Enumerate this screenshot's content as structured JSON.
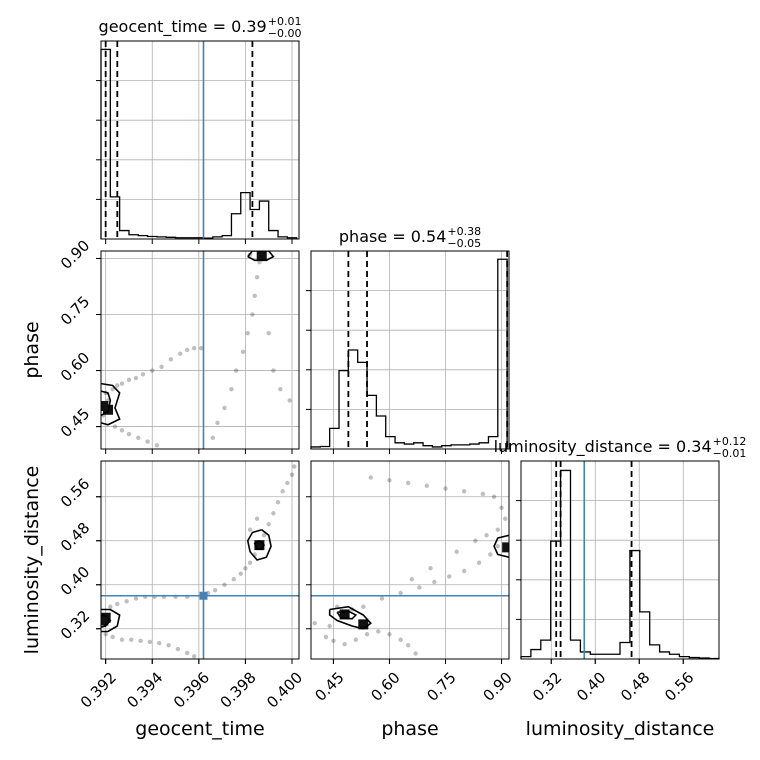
{
  "chart_data": {
    "type": "corner",
    "truth_color": "#4682b4",
    "hist_color": "#000000",
    "parameters": [
      {
        "name": "geocent_time",
        "axis_label": "geocent_time",
        "range": [
          0.3918,
          0.4003
        ],
        "ticks": [
          0.392,
          0.394,
          0.396,
          0.398,
          0.4
        ],
        "tick_labels": [
          "0.392",
          "0.394",
          "0.396",
          "0.398",
          "0.400"
        ],
        "truth": 0.3962,
        "title": {
          "text": "geocent_time = 0.39",
          "plus": "+0.01",
          "minus": "−0.00"
        },
        "quantiles": [
          0.392,
          0.3925,
          0.3983
        ],
        "hist": {
          "edges": [
            0.3918,
            0.3922,
            0.3926,
            0.393,
            0.3934,
            0.3938,
            0.3942,
            0.3946,
            0.395,
            0.3954,
            0.3958,
            0.3962,
            0.3966,
            0.397,
            0.3974,
            0.3978,
            0.3982,
            0.3986,
            0.399,
            0.3994,
            0.3998,
            0.4002
          ],
          "counts": [
            4.5,
            1.0,
            0.2,
            0.1,
            0.08,
            0.06,
            0.05,
            0.04,
            0.03,
            0.03,
            0.03,
            0.02,
            0.05,
            0.08,
            0.6,
            1.1,
            0.7,
            0.9,
            0.2,
            0.05,
            0.03
          ],
          "ymax": 4.7
        }
      },
      {
        "name": "phase",
        "axis_label": "phase",
        "range": [
          0.39,
          0.92
        ],
        "ticks": [
          0.45,
          0.6,
          0.75,
          0.9
        ],
        "tick_labels": [
          "0.45",
          "0.60",
          "0.75",
          "0.90"
        ],
        "truth": null,
        "title": {
          "text": "phase = 0.54",
          "plus": "+0.38",
          "minus": "−0.05"
        },
        "quantiles": [
          0.49,
          0.54,
          0.915
        ],
        "hist": {
          "edges": [
            0.39,
            0.415,
            0.44,
            0.465,
            0.49,
            0.515,
            0.54,
            0.565,
            0.59,
            0.615,
            0.64,
            0.665,
            0.69,
            0.715,
            0.74,
            0.765,
            0.79,
            0.815,
            0.84,
            0.865,
            0.89,
            0.915
          ],
          "counts": [
            0.05,
            0.06,
            0.5,
            1.9,
            2.4,
            2.1,
            1.3,
            0.8,
            0.3,
            0.15,
            0.12,
            0.15,
            0.08,
            0.05,
            0.08,
            0.1,
            0.1,
            0.12,
            0.15,
            0.3,
            4.6
          ],
          "ymax": 4.8
        }
      },
      {
        "name": "luminosity_distance",
        "axis_label": "luminosity_distance",
        "range": [
          0.265,
          0.625
        ],
        "ticks": [
          0.32,
          0.4,
          0.48,
          0.56
        ],
        "tick_labels": [
          "0.32",
          "0.40",
          "0.48",
          "0.56"
        ],
        "truth": 0.38,
        "title": {
          "text": "luminosity_distance = 0.34",
          "plus": "+0.12",
          "minus": "−0.01"
        },
        "quantiles": [
          0.329,
          0.337,
          0.466
        ],
        "hist": {
          "edges": [
            0.265,
            0.283,
            0.301,
            0.319,
            0.337,
            0.355,
            0.373,
            0.391,
            0.409,
            0.427,
            0.445,
            0.463,
            0.481,
            0.499,
            0.517,
            0.535,
            0.553,
            0.571,
            0.589,
            0.607,
            0.625
          ],
          "counts": [
            0.05,
            0.2,
            0.4,
            2.5,
            4.0,
            0.4,
            0.15,
            0.1,
            0.1,
            0.1,
            0.35,
            2.3,
            1.0,
            0.3,
            0.15,
            0.1,
            0.05,
            0.03,
            0.02,
            0.01
          ],
          "ymax": 4.2
        }
      }
    ],
    "panels_2d": [
      {
        "x_param": 0,
        "y_param": 1,
        "truth": [
          0.3962,
          null
        ],
        "samples": [
          [
            0.3919,
            0.51
          ],
          [
            0.3921,
            0.52
          ],
          [
            0.3923,
            0.55
          ],
          [
            0.3925,
            0.56
          ],
          [
            0.3927,
            0.565
          ],
          [
            0.393,
            0.575
          ],
          [
            0.3933,
            0.58
          ],
          [
            0.3936,
            0.59
          ],
          [
            0.394,
            0.6
          ],
          [
            0.3944,
            0.61
          ],
          [
            0.3948,
            0.63
          ],
          [
            0.3952,
            0.645
          ],
          [
            0.3955,
            0.655
          ],
          [
            0.3958,
            0.66
          ],
          [
            0.3961,
            0.66
          ],
          [
            0.3924,
            0.45
          ],
          [
            0.3927,
            0.44
          ],
          [
            0.393,
            0.43
          ],
          [
            0.3934,
            0.42
          ],
          [
            0.3938,
            0.41
          ],
          [
            0.3942,
            0.4
          ],
          [
            0.3966,
            0.42
          ],
          [
            0.3968,
            0.46
          ],
          [
            0.3971,
            0.5
          ],
          [
            0.3974,
            0.55
          ],
          [
            0.3976,
            0.6
          ],
          [
            0.3979,
            0.65
          ],
          [
            0.3981,
            0.7
          ],
          [
            0.3983,
            0.75
          ],
          [
            0.3984,
            0.8
          ],
          [
            0.3985,
            0.85
          ],
          [
            0.3986,
            0.89
          ],
          [
            0.3982,
            0.91
          ],
          [
            0.3988,
            0.9
          ],
          [
            0.399,
            0.7
          ],
          [
            0.3992,
            0.6
          ],
          [
            0.3995,
            0.55
          ],
          [
            0.3999,
            0.52
          ],
          [
            0.3919,
            0.48
          ],
          [
            0.392,
            0.54
          ]
        ],
        "contours": [
          [
            [
              0.3918,
              0.565
            ],
            [
              0.3923,
              0.56
            ],
            [
              0.3926,
              0.54
            ],
            [
              0.3924,
              0.5
            ],
            [
              0.3926,
              0.47
            ],
            [
              0.3921,
              0.455
            ],
            [
              0.3918,
              0.46
            ]
          ],
          [
            [
              0.3918,
              0.545
            ],
            [
              0.3921,
              0.54
            ],
            [
              0.3922,
              0.52
            ],
            [
              0.3921,
              0.49
            ],
            [
              0.3918,
              0.48
            ]
          ],
          [
            [
              0.3981,
              0.905
            ],
            [
              0.3983,
              0.92
            ],
            [
              0.399,
              0.92
            ],
            [
              0.3992,
              0.905
            ],
            [
              0.3989,
              0.895
            ],
            [
              0.3984,
              0.895
            ],
            [
              0.3981,
              0.905
            ]
          ]
        ],
        "dense": [
          [
            0.3919,
            0.505
          ],
          [
            0.3921,
            0.495
          ],
          [
            0.3987,
            0.91
          ]
        ]
      },
      {
        "x_param": 0,
        "y_param": 2,
        "truth": [
          0.3962,
          0.38
        ],
        "samples": [
          [
            0.392,
            0.31
          ],
          [
            0.3923,
            0.305
          ],
          [
            0.3927,
            0.3
          ],
          [
            0.3931,
            0.3
          ],
          [
            0.3935,
            0.298
          ],
          [
            0.3939,
            0.296
          ],
          [
            0.3943,
            0.294
          ],
          [
            0.3947,
            0.29
          ],
          [
            0.3951,
            0.283
          ],
          [
            0.3955,
            0.276
          ],
          [
            0.3958,
            0.27
          ],
          [
            0.3962,
            0.38
          ],
          [
            0.3964,
            0.385
          ],
          [
            0.3967,
            0.39
          ],
          [
            0.3971,
            0.4
          ],
          [
            0.3975,
            0.41
          ],
          [
            0.3978,
            0.42
          ],
          [
            0.398,
            0.43
          ],
          [
            0.3982,
            0.44
          ],
          [
            0.3984,
            0.455
          ],
          [
            0.3986,
            0.47
          ],
          [
            0.3988,
            0.49
          ],
          [
            0.399,
            0.51
          ],
          [
            0.3992,
            0.53
          ],
          [
            0.3994,
            0.55
          ],
          [
            0.3996,
            0.57
          ],
          [
            0.3998,
            0.585
          ],
          [
            0.4,
            0.6
          ],
          [
            0.4001,
            0.615
          ],
          [
            0.3922,
            0.36
          ],
          [
            0.3925,
            0.365
          ],
          [
            0.3929,
            0.37
          ],
          [
            0.3933,
            0.375
          ],
          [
            0.3937,
            0.378
          ],
          [
            0.3941,
            0.378
          ],
          [
            0.3945,
            0.378
          ],
          [
            0.395,
            0.378
          ],
          [
            0.3955,
            0.378
          ],
          [
            0.3982,
            0.5
          ],
          [
            0.3985,
            0.52
          ]
        ],
        "contours": [
          [
            [
              0.3918,
              0.355
            ],
            [
              0.3922,
              0.355
            ],
            [
              0.3926,
              0.345
            ],
            [
              0.3925,
              0.325
            ],
            [
              0.3921,
              0.315
            ],
            [
              0.3918,
              0.315
            ]
          ],
          [
            [
              0.3918,
              0.345
            ],
            [
              0.392,
              0.343
            ],
            [
              0.3922,
              0.335
            ],
            [
              0.392,
              0.325
            ],
            [
              0.3918,
              0.323
            ]
          ],
          [
            [
              0.3987,
              0.5
            ],
            [
              0.3983,
              0.495
            ],
            [
              0.3981,
              0.48
            ],
            [
              0.3982,
              0.46
            ],
            [
              0.3985,
              0.445
            ],
            [
              0.3989,
              0.45
            ],
            [
              0.3991,
              0.47
            ],
            [
              0.399,
              0.49
            ],
            [
              0.3987,
              0.5
            ]
          ],
          [
            [
              0.3986,
              0.48
            ],
            [
              0.3984,
              0.475
            ],
            [
              0.3985,
              0.465
            ],
            [
              0.3987,
              0.465
            ],
            [
              0.3988,
              0.472
            ],
            [
              0.3986,
              0.48
            ]
          ]
        ],
        "dense": [
          [
            0.3919,
            0.335
          ],
          [
            0.392,
            0.34
          ],
          [
            0.3986,
            0.472
          ]
        ]
      },
      {
        "x_param": 1,
        "y_param": 2,
        "truth": [
          null,
          0.38
        ],
        "samples": [
          [
            0.43,
            0.305
          ],
          [
            0.45,
            0.298
          ],
          [
            0.48,
            0.292
          ],
          [
            0.51,
            0.3
          ],
          [
            0.54,
            0.31
          ],
          [
            0.57,
            0.315
          ],
          [
            0.6,
            0.31
          ],
          [
            0.63,
            0.3
          ],
          [
            0.65,
            0.29
          ],
          [
            0.67,
            0.275
          ],
          [
            0.53,
            0.36
          ],
          [
            0.58,
            0.375
          ],
          [
            0.63,
            0.385
          ],
          [
            0.68,
            0.395
          ],
          [
            0.72,
            0.405
          ],
          [
            0.76,
            0.415
          ],
          [
            0.8,
            0.425
          ],
          [
            0.84,
            0.44
          ],
          [
            0.87,
            0.455
          ],
          [
            0.89,
            0.47
          ],
          [
            0.55,
            0.595
          ],
          [
            0.6,
            0.59
          ],
          [
            0.65,
            0.585
          ],
          [
            0.7,
            0.58
          ],
          [
            0.75,
            0.575
          ],
          [
            0.8,
            0.57
          ],
          [
            0.85,
            0.565
          ],
          [
            0.88,
            0.56
          ],
          [
            0.9,
            0.54
          ],
          [
            0.91,
            0.52
          ],
          [
            0.46,
            0.36
          ],
          [
            0.5,
            0.355
          ],
          [
            0.4,
            0.33
          ],
          [
            0.44,
            0.325
          ],
          [
            0.71,
            0.43
          ],
          [
            0.78,
            0.46
          ],
          [
            0.83,
            0.48
          ],
          [
            0.86,
            0.49
          ],
          [
            0.89,
            0.5
          ],
          [
            0.66,
            0.41
          ]
        ],
        "contours": [
          [
            [
              0.44,
              0.355
            ],
            [
              0.49,
              0.36
            ],
            [
              0.53,
              0.345
            ],
            [
              0.55,
              0.33
            ],
            [
              0.53,
              0.32
            ],
            [
              0.5,
              0.325
            ],
            [
              0.46,
              0.335
            ],
            [
              0.44,
              0.345
            ],
            [
              0.44,
              0.355
            ]
          ],
          [
            [
              0.46,
              0.35
            ],
            [
              0.49,
              0.352
            ],
            [
              0.51,
              0.345
            ],
            [
              0.5,
              0.338
            ],
            [
              0.47,
              0.34
            ],
            [
              0.46,
              0.35
            ]
          ],
          [
            [
              0.92,
              0.49
            ],
            [
              0.89,
              0.485
            ],
            [
              0.88,
              0.47
            ],
            [
              0.89,
              0.455
            ],
            [
              0.92,
              0.45
            ]
          ]
        ],
        "dense": [
          [
            0.48,
            0.346
          ],
          [
            0.53,
            0.328
          ],
          [
            0.915,
            0.468
          ]
        ]
      }
    ]
  }
}
